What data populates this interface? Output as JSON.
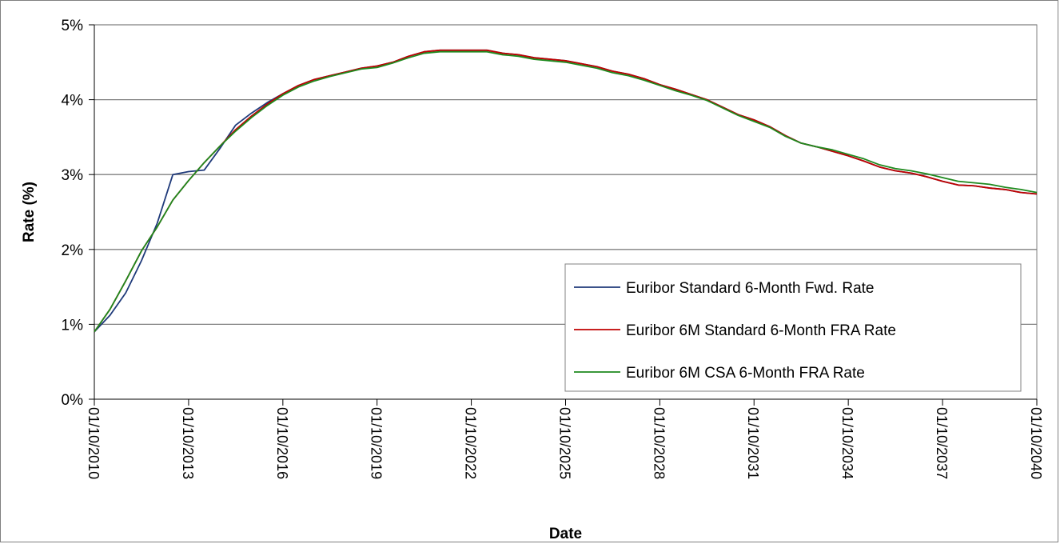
{
  "chart_data": {
    "type": "line",
    "xlabel": "Date",
    "ylabel": "Rate (%)",
    "x_ticks": [
      "01/10/2010",
      "01/10/2013",
      "01/10/2016",
      "01/10/2019",
      "01/10/2022",
      "01/10/2025",
      "01/10/2028",
      "01/10/2031",
      "01/10/2034",
      "01/10/2037",
      "01/10/2040"
    ],
    "xlim": [
      "01/10/2010",
      "01/10/2040"
    ],
    "y_ticks": [
      "0%",
      "1%",
      "2%",
      "3%",
      "4%",
      "5%"
    ],
    "ylim": [
      0,
      5
    ],
    "grid": "horizontal",
    "legend_position": "bottom-right",
    "series": [
      {
        "name": "Euribor Standard 6-Month Fwd. Rate",
        "color": "#1f3a7a",
        "points": [
          [
            "01/10/2010",
            0.9
          ],
          [
            "01/04/2011",
            1.12
          ],
          [
            "01/10/2011",
            1.42
          ],
          [
            "01/04/2012",
            1.85
          ],
          [
            "01/10/2012",
            2.35
          ],
          [
            "01/04/2013",
            3.0
          ],
          [
            "01/10/2013",
            3.04
          ],
          [
            "01/04/2014",
            3.06
          ],
          [
            "01/10/2014",
            3.35
          ],
          [
            "01/04/2015",
            3.66
          ],
          [
            "01/10/2015",
            3.82
          ],
          [
            "01/04/2016",
            3.96
          ],
          [
            "01/10/2016",
            4.08
          ],
          [
            "01/04/2017",
            4.19
          ],
          [
            "01/10/2017",
            4.27
          ],
          [
            "01/04/2018",
            4.32
          ],
          [
            "01/10/2018",
            4.37
          ],
          [
            "01/04/2019",
            4.42
          ],
          [
            "01/10/2019",
            4.45
          ],
          [
            "01/04/2020",
            4.5
          ],
          [
            "01/10/2020",
            4.58
          ],
          [
            "01/04/2021",
            4.64
          ],
          [
            "01/10/2021",
            4.66
          ],
          [
            "01/04/2022",
            4.66
          ],
          [
            "01/10/2022",
            4.66
          ],
          [
            "01/04/2023",
            4.66
          ],
          [
            "01/10/2023",
            4.62
          ],
          [
            "01/04/2024",
            4.6
          ],
          [
            "01/10/2024",
            4.56
          ],
          [
            "01/04/2025",
            4.54
          ],
          [
            "01/10/2025",
            4.52
          ],
          [
            "01/04/2026",
            4.48
          ],
          [
            "01/10/2026",
            4.44
          ],
          [
            "01/04/2027",
            4.38
          ],
          [
            "01/10/2027",
            4.34
          ],
          [
            "01/04/2028",
            4.28
          ],
          [
            "01/10/2028",
            4.2
          ],
          [
            "01/04/2029",
            4.14
          ],
          [
            "01/10/2029",
            4.07
          ],
          [
            "01/04/2030",
            4.0
          ],
          [
            "01/10/2030",
            3.9
          ],
          [
            "01/04/2031",
            3.8
          ],
          [
            "01/10/2031",
            3.73
          ],
          [
            "01/04/2032",
            3.64
          ],
          [
            "01/10/2032",
            3.52
          ],
          [
            "01/04/2033",
            3.42
          ],
          [
            "01/10/2033",
            3.37
          ],
          [
            "01/04/2034",
            3.31
          ],
          [
            "01/10/2034",
            3.25
          ],
          [
            "01/04/2035",
            3.18
          ],
          [
            "01/10/2035",
            3.1
          ],
          [
            "01/04/2036",
            3.05
          ],
          [
            "01/10/2036",
            3.02
          ],
          [
            "01/04/2037",
            2.97
          ],
          [
            "01/10/2037",
            2.91
          ],
          [
            "01/04/2038",
            2.86
          ],
          [
            "01/10/2038",
            2.85
          ],
          [
            "01/04/2039",
            2.82
          ],
          [
            "01/10/2039",
            2.8
          ],
          [
            "01/04/2040",
            2.76
          ],
          [
            "01/10/2040",
            2.74
          ]
        ]
      },
      {
        "name": "Euribor 6M Standard 6-Month FRA Rate",
        "color": "#c00000",
        "points": [
          [
            "01/10/2010",
            0.9
          ],
          [
            "01/04/2011",
            1.2
          ],
          [
            "01/10/2011",
            1.58
          ],
          [
            "01/04/2012",
            1.98
          ],
          [
            "01/10/2012",
            2.3
          ],
          [
            "01/04/2013",
            2.66
          ],
          [
            "01/10/2013",
            2.92
          ],
          [
            "01/04/2014",
            3.16
          ],
          [
            "01/10/2014",
            3.38
          ],
          [
            "01/04/2015",
            3.6
          ],
          [
            "01/10/2015",
            3.78
          ],
          [
            "01/04/2016",
            3.94
          ],
          [
            "01/10/2016",
            4.08
          ],
          [
            "01/04/2017",
            4.19
          ],
          [
            "01/10/2017",
            4.27
          ],
          [
            "01/04/2018",
            4.32
          ],
          [
            "01/10/2018",
            4.37
          ],
          [
            "01/04/2019",
            4.42
          ],
          [
            "01/10/2019",
            4.45
          ],
          [
            "01/04/2020",
            4.5
          ],
          [
            "01/10/2020",
            4.58
          ],
          [
            "01/04/2021",
            4.64
          ],
          [
            "01/10/2021",
            4.66
          ],
          [
            "01/04/2022",
            4.66
          ],
          [
            "01/10/2022",
            4.66
          ],
          [
            "01/04/2023",
            4.66
          ],
          [
            "01/10/2023",
            4.62
          ],
          [
            "01/04/2024",
            4.6
          ],
          [
            "01/10/2024",
            4.56
          ],
          [
            "01/04/2025",
            4.54
          ],
          [
            "01/10/2025",
            4.52
          ],
          [
            "01/04/2026",
            4.48
          ],
          [
            "01/10/2026",
            4.44
          ],
          [
            "01/04/2027",
            4.38
          ],
          [
            "01/10/2027",
            4.34
          ],
          [
            "01/04/2028",
            4.28
          ],
          [
            "01/10/2028",
            4.2
          ],
          [
            "01/04/2029",
            4.14
          ],
          [
            "01/10/2029",
            4.07
          ],
          [
            "01/04/2030",
            4.0
          ],
          [
            "01/10/2030",
            3.9
          ],
          [
            "01/04/2031",
            3.8
          ],
          [
            "01/10/2031",
            3.73
          ],
          [
            "01/04/2032",
            3.64
          ],
          [
            "01/10/2032",
            3.52
          ],
          [
            "01/04/2033",
            3.42
          ],
          [
            "01/10/2033",
            3.37
          ],
          [
            "01/04/2034",
            3.31
          ],
          [
            "01/10/2034",
            3.25
          ],
          [
            "01/04/2035",
            3.18
          ],
          [
            "01/10/2035",
            3.1
          ],
          [
            "01/04/2036",
            3.05
          ],
          [
            "01/10/2036",
            3.02
          ],
          [
            "01/04/2037",
            2.97
          ],
          [
            "01/10/2037",
            2.91
          ],
          [
            "01/04/2038",
            2.86
          ],
          [
            "01/10/2038",
            2.85
          ],
          [
            "01/04/2039",
            2.82
          ],
          [
            "01/10/2039",
            2.8
          ],
          [
            "01/04/2040",
            2.76
          ],
          [
            "01/10/2040",
            2.74
          ]
        ]
      },
      {
        "name": "Euribor 6M CSA 6-Month FRA Rate",
        "color": "#1e8a1e",
        "points": [
          [
            "01/10/2010",
            0.9
          ],
          [
            "01/04/2011",
            1.2
          ],
          [
            "01/10/2011",
            1.58
          ],
          [
            "01/04/2012",
            1.98
          ],
          [
            "01/10/2012",
            2.3
          ],
          [
            "01/04/2013",
            2.66
          ],
          [
            "01/10/2013",
            2.92
          ],
          [
            "01/04/2014",
            3.16
          ],
          [
            "01/10/2014",
            3.38
          ],
          [
            "01/04/2015",
            3.58
          ],
          [
            "01/10/2015",
            3.76
          ],
          [
            "01/04/2016",
            3.92
          ],
          [
            "01/10/2016",
            4.06
          ],
          [
            "01/04/2017",
            4.17
          ],
          [
            "01/10/2017",
            4.25
          ],
          [
            "01/04/2018",
            4.31
          ],
          [
            "01/10/2018",
            4.36
          ],
          [
            "01/04/2019",
            4.41
          ],
          [
            "01/10/2019",
            4.43
          ],
          [
            "01/04/2020",
            4.49
          ],
          [
            "01/10/2020",
            4.56
          ],
          [
            "01/04/2021",
            4.62
          ],
          [
            "01/10/2021",
            4.64
          ],
          [
            "01/04/2022",
            4.64
          ],
          [
            "01/10/2022",
            4.64
          ],
          [
            "01/04/2023",
            4.64
          ],
          [
            "01/10/2023",
            4.6
          ],
          [
            "01/04/2024",
            4.58
          ],
          [
            "01/10/2024",
            4.54
          ],
          [
            "01/04/2025",
            4.52
          ],
          [
            "01/10/2025",
            4.5
          ],
          [
            "01/04/2026",
            4.46
          ],
          [
            "01/10/2026",
            4.42
          ],
          [
            "01/04/2027",
            4.36
          ],
          [
            "01/10/2027",
            4.32
          ],
          [
            "01/04/2028",
            4.26
          ],
          [
            "01/10/2028",
            4.19
          ],
          [
            "01/04/2029",
            4.12
          ],
          [
            "01/10/2029",
            4.06
          ],
          [
            "01/04/2030",
            3.99
          ],
          [
            "01/10/2030",
            3.89
          ],
          [
            "01/04/2031",
            3.79
          ],
          [
            "01/10/2031",
            3.71
          ],
          [
            "01/04/2032",
            3.63
          ],
          [
            "01/10/2032",
            3.51
          ],
          [
            "01/04/2033",
            3.42
          ],
          [
            "01/10/2033",
            3.37
          ],
          [
            "01/04/2034",
            3.33
          ],
          [
            "01/10/2034",
            3.27
          ],
          [
            "01/04/2035",
            3.21
          ],
          [
            "01/10/2035",
            3.13
          ],
          [
            "01/04/2036",
            3.08
          ],
          [
            "01/10/2036",
            3.05
          ],
          [
            "01/04/2037",
            3.01
          ],
          [
            "01/10/2037",
            2.96
          ],
          [
            "01/04/2038",
            2.91
          ],
          [
            "01/10/2038",
            2.89
          ],
          [
            "01/04/2039",
            2.87
          ],
          [
            "01/10/2039",
            2.83
          ],
          [
            "01/04/2040",
            2.8
          ],
          [
            "01/10/2040",
            2.76
          ]
        ]
      }
    ]
  }
}
